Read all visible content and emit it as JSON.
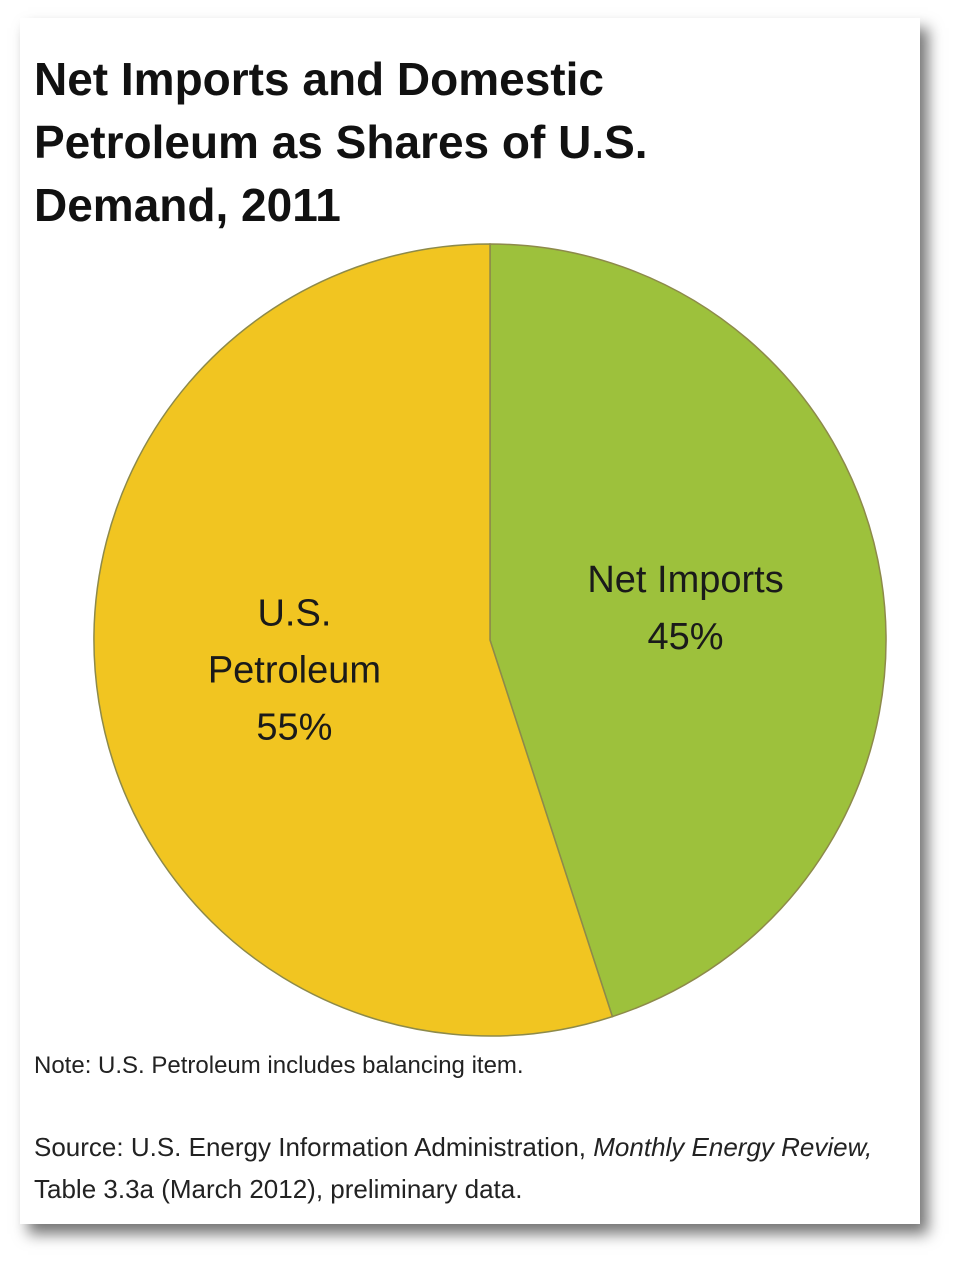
{
  "chart_data": {
    "type": "pie",
    "title": "Net Imports and Domestic Petroleum as Shares of U.S. Demand, 2011",
    "categories": [
      "Net Imports",
      "U.S. Petroleum"
    ],
    "values": [
      45,
      55
    ],
    "value_labels": [
      "45%",
      "55%"
    ],
    "colors": [
      "#9dc13c",
      "#f1c521"
    ],
    "note": "Note: U.S. Petroleum includes balancing item.",
    "source": [
      "Source: U.S. Energy Information Administration, ",
      "Monthly Energy Review,",
      " Table 3.3a (March 2012), preliminary data."
    ]
  }
}
